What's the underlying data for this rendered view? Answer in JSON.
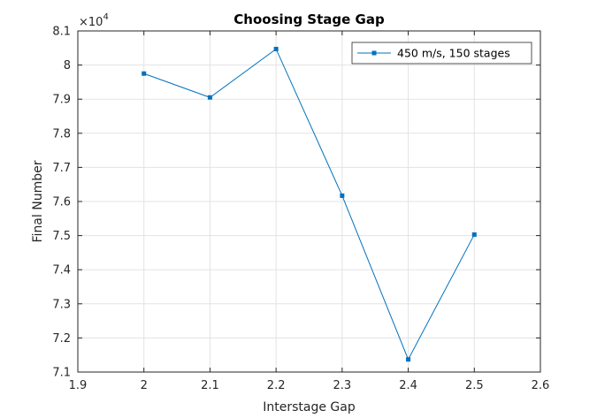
{
  "chart_data": {
    "type": "line",
    "title": "Choosing Stage Gap",
    "xlabel": "Interstage Gap",
    "ylabel": "Final Number",
    "y_exponent_base": "×10",
    "y_exponent_power": "4",
    "xlim": [
      1.9,
      2.6
    ],
    "ylim": [
      7.1,
      8.1
    ],
    "x_ticks": [
      "1.9",
      "2",
      "2.1",
      "2.2",
      "2.3",
      "2.4",
      "2.5",
      "2.6"
    ],
    "y_ticks": [
      "7.1",
      "7.2",
      "7.3",
      "7.4",
      "7.5",
      "7.6",
      "7.7",
      "7.8",
      "7.9",
      "8",
      "8.1"
    ],
    "grid": true,
    "legend_position": "top-right",
    "series": [
      {
        "name": "450 m/s, 150 stages",
        "color": "#0072BD",
        "marker": "square",
        "x": [
          2.0,
          2.1,
          2.2,
          2.3,
          2.4,
          2.5
        ],
        "y": [
          7.975,
          7.905,
          8.047,
          7.617,
          7.137,
          7.503
        ]
      }
    ]
  }
}
